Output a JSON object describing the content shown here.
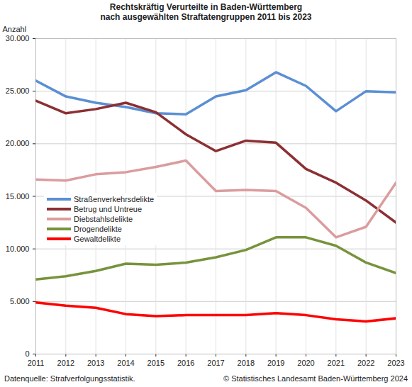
{
  "chart_data": {
    "type": "line",
    "title": "Rechtskräftig Verurteilte in Baden-Württemberg\nnach ausgewählten Straftatengruppen 2011 bis 2023",
    "y_label": "Anzahl",
    "source": "Datenquelle: Strafverfolgungsstatistik.",
    "copyright": "© Statistisches Landesamt Baden-Württemberg 2024",
    "x": [
      2011,
      2012,
      2013,
      2014,
      2015,
      2016,
      2017,
      2018,
      2019,
      2020,
      2021,
      2022,
      2023
    ],
    "xlim": [
      2011,
      2023
    ],
    "xticks": [
      2011,
      2012,
      2013,
      2014,
      2015,
      2016,
      2017,
      2018,
      2019,
      2020,
      2021,
      2022,
      2023
    ],
    "ylim": [
      0,
      30000
    ],
    "yticks": [
      0,
      {
        "value": 5000,
        "label": "5.000"
      },
      {
        "value": 10000,
        "label": "10.000"
      },
      {
        "value": 15000,
        "label": "15.000"
      },
      {
        "value": 20000,
        "label": "20.000"
      },
      {
        "value": 25000,
        "label": "25.000"
      },
      {
        "value": 30000,
        "label": "30.000"
      }
    ],
    "grid": true,
    "legend": "left",
    "series": [
      {
        "name": "Straßenverkehrsdelikte",
        "color": "#5b8fd4",
        "values": [
          26000,
          24500,
          23900,
          23500,
          22900,
          22800,
          24500,
          25100,
          26800,
          25500,
          23100,
          25000,
          24900
        ]
      },
      {
        "name": "Betrug und Untreue",
        "color": "#8c2f33",
        "values": [
          24100,
          22900,
          23300,
          23900,
          23000,
          20900,
          19300,
          20300,
          20100,
          17600,
          16300,
          14600,
          12500
        ]
      },
      {
        "name": "Diebstahlsdelikte",
        "color": "#db9c9e",
        "values": [
          16600,
          16500,
          17100,
          17300,
          17800,
          18400,
          15500,
          15600,
          15500,
          13900,
          11100,
          12100,
          16300
        ]
      },
      {
        "name": "Drogendelikte",
        "color": "#77933c",
        "values": [
          7100,
          7400,
          7900,
          8600,
          8500,
          8700,
          9200,
          9900,
          11100,
          11100,
          10300,
          8700,
          7700
        ]
      },
      {
        "name": "Gewaltdelikte",
        "color": "#ff0000",
        "values": [
          4900,
          4600,
          4400,
          3800,
          3600,
          3700,
          3700,
          3700,
          3900,
          3700,
          3300,
          3100,
          3400
        ]
      }
    ]
  }
}
